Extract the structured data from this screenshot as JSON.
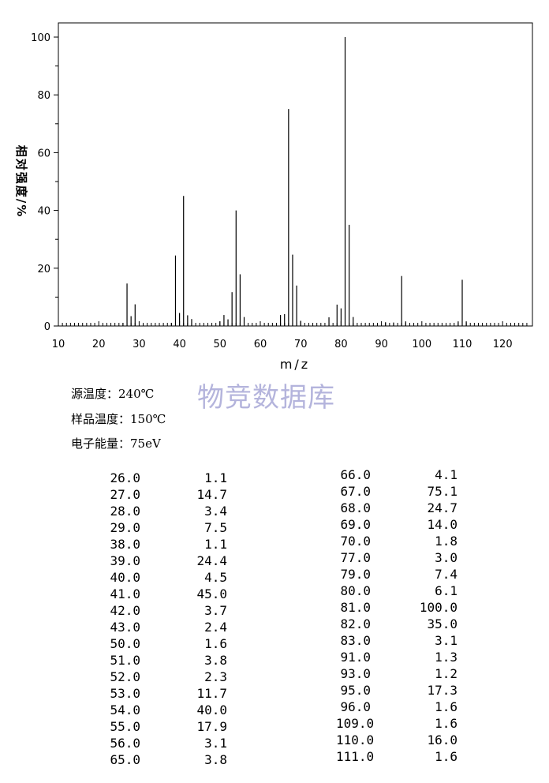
{
  "chart_data": {
    "type": "bar",
    "title": "",
    "xlabel": "m/z",
    "ylabel": "相对强度/%",
    "xlim": [
      10,
      126
    ],
    "ylim": [
      0,
      105
    ],
    "x_ticks": [
      10,
      20,
      30,
      40,
      50,
      60,
      70,
      80,
      90,
      100,
      110,
      120
    ],
    "y_ticks": [
      0,
      20,
      40,
      60,
      80,
      100
    ],
    "grid": false,
    "x": [
      26,
      27,
      28,
      29,
      38,
      39,
      40,
      41,
      42,
      43,
      50,
      51,
      52,
      53,
      54,
      55,
      56,
      65,
      66,
      67,
      68,
      69,
      70,
      77,
      79,
      80,
      81,
      82,
      83,
      91,
      93,
      95,
      96,
      109,
      110,
      111
    ],
    "values": [
      1.1,
      14.7,
      3.4,
      7.5,
      1.1,
      24.4,
      4.5,
      45.0,
      3.7,
      2.4,
      1.6,
      3.8,
      2.3,
      11.7,
      40.0,
      17.9,
      3.1,
      3.8,
      4.1,
      75.1,
      24.7,
      14.0,
      1.8,
      3.0,
      7.4,
      6.1,
      100.0,
      35.0,
      3.1,
      1.3,
      1.2,
      17.3,
      1.6,
      1.6,
      16.0,
      1.6
    ]
  },
  "conditions": [
    "源温度：240℃",
    "样品温度：150℃",
    "电子能量：75eV"
  ],
  "watermark": "物竞数据库",
  "peak_table": {
    "left": [
      [
        "26.0",
        "1.1"
      ],
      [
        "27.0",
        "14.7"
      ],
      [
        "28.0",
        "3.4"
      ],
      [
        "29.0",
        "7.5"
      ],
      [
        "38.0",
        "1.1"
      ],
      [
        "39.0",
        "24.4"
      ],
      [
        "40.0",
        "4.5"
      ],
      [
        "41.0",
        "45.0"
      ],
      [
        "42.0",
        "3.7"
      ],
      [
        "43.0",
        "2.4"
      ],
      [
        "50.0",
        "1.6"
      ],
      [
        "51.0",
        "3.8"
      ],
      [
        "52.0",
        "2.3"
      ],
      [
        "53.0",
        "11.7"
      ],
      [
        "54.0",
        "40.0"
      ],
      [
        "55.0",
        "17.9"
      ],
      [
        "56.0",
        "3.1"
      ],
      [
        "65.0",
        "3.8"
      ]
    ],
    "right": [
      [
        "66.0",
        "4.1"
      ],
      [
        "67.0",
        "75.1"
      ],
      [
        "68.0",
        "24.7"
      ],
      [
        "69.0",
        "14.0"
      ],
      [
        "70.0",
        "1.8"
      ],
      [
        "77.0",
        "3.0"
      ],
      [
        "79.0",
        "7.4"
      ],
      [
        "80.0",
        "6.1"
      ],
      [
        "81.0",
        "100.0"
      ],
      [
        "82.0",
        "35.0"
      ],
      [
        "83.0",
        "3.1"
      ],
      [
        "91.0",
        "1.3"
      ],
      [
        "93.0",
        "1.2"
      ],
      [
        "95.0",
        "17.3"
      ],
      [
        "96.0",
        "1.6"
      ],
      [
        "109.0",
        "1.6"
      ],
      [
        "110.0",
        "16.0"
      ],
      [
        "111.0",
        "1.6"
      ]
    ]
  }
}
